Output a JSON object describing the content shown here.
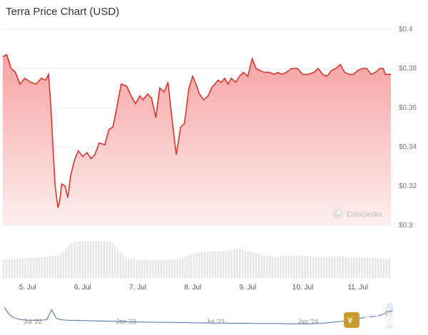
{
  "page": {
    "title": "Terra Price Chart (USD)",
    "watermark": "CoinGecko",
    "corner_logo_text": "金色财经"
  },
  "colors": {
    "line": "#d9342b",
    "area_top": "#f6a3a3",
    "area_bottom": "#fdeeee",
    "volume": "#e6e6e6",
    "grid": "#eeeeee",
    "navigator_line": "#4a6fa5",
    "navigator_bg": "#e9eef5",
    "corner_logo_bg": "#c99a2e"
  },
  "chart_data": {
    "type": "area",
    "title": "Terra Price Chart (USD)",
    "y_ticks": [
      "$0.4",
      "$0.38",
      "$0.36",
      "$0.34",
      "$0.32",
      "$0.3"
    ],
    "ylim": [
      0.3,
      0.4
    ],
    "x_ticks": [
      "5. Jul",
      "6. Jul",
      "7. Jul",
      "8. Jul",
      "9. Jul",
      "10. Jul",
      "11. Jul"
    ],
    "x_tick_days": [
      5,
      6,
      7,
      8,
      9,
      10,
      11
    ],
    "xlim_days": [
      4.55,
      11.6
    ],
    "series": [
      {
        "x_days": [
          4.55,
          4.62,
          4.7,
          4.78,
          4.86,
          4.95,
          5.05,
          5.15,
          5.25,
          5.33,
          5.38,
          5.42,
          5.46,
          5.5,
          5.55,
          5.58,
          5.62,
          5.68,
          5.73,
          5.78,
          5.85,
          5.92,
          6.0,
          6.08,
          6.15,
          6.22,
          6.3,
          6.4,
          6.48,
          6.55,
          6.62,
          6.7,
          6.8,
          6.88,
          6.96,
          7.04,
          7.1,
          7.18,
          7.25,
          7.33,
          7.4,
          7.48,
          7.55,
          7.62,
          7.7,
          7.78,
          7.85,
          7.93,
          8.0,
          8.06,
          8.12,
          8.2,
          8.28,
          8.34,
          8.4,
          8.46,
          8.52,
          8.58,
          8.64,
          8.7,
          8.78,
          8.85,
          8.92,
          9.0,
          9.08,
          9.15,
          9.22,
          9.3,
          9.4,
          9.48,
          9.55,
          9.62,
          9.7,
          9.8,
          9.9,
          10.0,
          10.1,
          10.2,
          10.28,
          10.36,
          10.44,
          10.52,
          10.6,
          10.68,
          10.76,
          10.84,
          10.92,
          11.0,
          11.08,
          11.16,
          11.24,
          11.32,
          11.4,
          11.46,
          11.5,
          11.56,
          11.6
        ],
        "y": [
          0.386,
          0.387,
          0.38,
          0.378,
          0.372,
          0.375,
          0.373,
          0.372,
          0.375,
          0.374,
          0.377,
          0.362,
          0.34,
          0.32,
          0.309,
          0.312,
          0.321,
          0.32,
          0.314,
          0.325,
          0.333,
          0.338,
          0.335,
          0.337,
          0.334,
          0.336,
          0.342,
          0.341,
          0.349,
          0.35,
          0.36,
          0.372,
          0.371,
          0.366,
          0.362,
          0.366,
          0.364,
          0.367,
          0.365,
          0.355,
          0.37,
          0.368,
          0.373,
          0.355,
          0.336,
          0.35,
          0.352,
          0.37,
          0.376,
          0.372,
          0.367,
          0.364,
          0.366,
          0.37,
          0.372,
          0.374,
          0.373,
          0.375,
          0.372,
          0.375,
          0.373,
          0.376,
          0.378,
          0.376,
          0.385,
          0.38,
          0.379,
          0.378,
          0.378,
          0.377,
          0.378,
          0.377,
          0.378,
          0.38,
          0.38,
          0.377,
          0.377,
          0.378,
          0.38,
          0.377,
          0.376,
          0.379,
          0.38,
          0.382,
          0.378,
          0.377,
          0.377,
          0.379,
          0.38,
          0.38,
          0.377,
          0.378,
          0.38,
          0.38,
          0.377,
          0.377,
          0.377
        ]
      }
    ],
    "volume": [
      40,
      41,
      41,
      42,
      42,
      42,
      43,
      43,
      43,
      44,
      44,
      44,
      44,
      45,
      45,
      46,
      46,
      47,
      48,
      49,
      50,
      52,
      58,
      65,
      72,
      76,
      78,
      79,
      80,
      80,
      80,
      80,
      80,
      80,
      80,
      80,
      80,
      80,
      80,
      79,
      76,
      70,
      62,
      55,
      50,
      46,
      43,
      42,
      41,
      40,
      40,
      40,
      40,
      39,
      39,
      39,
      39,
      39,
      39,
      39,
      39,
      40,
      40,
      41,
      42,
      43,
      45,
      47,
      49,
      51,
      53,
      55,
      56,
      57,
      57,
      57,
      58,
      58,
      58,
      58,
      58,
      59,
      60,
      61,
      62,
      63,
      64,
      63,
      62,
      61,
      59,
      57,
      56,
      54,
      52,
      50,
      49,
      48,
      48,
      47,
      47,
      47,
      47,
      48,
      48,
      49,
      49,
      50,
      50,
      49,
      49,
      48,
      48,
      47,
      47,
      47,
      46,
      46,
      46,
      46,
      47,
      47,
      48,
      48,
      48,
      47,
      46,
      46,
      45,
      45,
      45,
      44,
      44,
      44,
      44,
      44,
      43,
      43,
      43,
      43,
      42,
      42,
      42
    ],
    "navigator": {
      "labels": [
        "Jul '22",
        "Jan '23",
        "Jul '23",
        "Jan '24"
      ],
      "values": [
        0.9,
        0.6,
        0.45,
        0.38,
        0.35,
        0.34,
        0.33,
        0.33,
        0.34,
        0.36,
        0.8,
        0.42,
        0.36,
        0.34,
        0.33,
        0.33,
        0.32,
        0.32,
        0.31,
        0.31,
        0.3,
        0.3,
        0.29,
        0.29,
        0.28,
        0.28,
        0.27,
        0.27,
        0.26,
        0.26,
        0.25,
        0.25,
        0.25,
        0.24,
        0.24,
        0.24,
        0.24,
        0.23,
        0.23,
        0.23,
        0.22,
        0.22,
        0.22,
        0.22,
        0.21,
        0.21,
        0.21,
        0.21,
        0.2,
        0.2,
        0.2,
        0.2,
        0.2,
        0.19,
        0.19,
        0.19,
        0.19,
        0.19,
        0.19,
        0.18,
        0.18,
        0.18,
        0.18,
        0.18,
        0.18,
        0.18,
        0.19,
        0.2,
        0.22,
        0.24,
        0.26,
        0.28,
        0.3,
        0.34,
        0.38,
        0.42,
        0.45,
        0.48,
        0.5,
        0.52,
        0.6,
        0.7,
        0.75
      ]
    }
  }
}
